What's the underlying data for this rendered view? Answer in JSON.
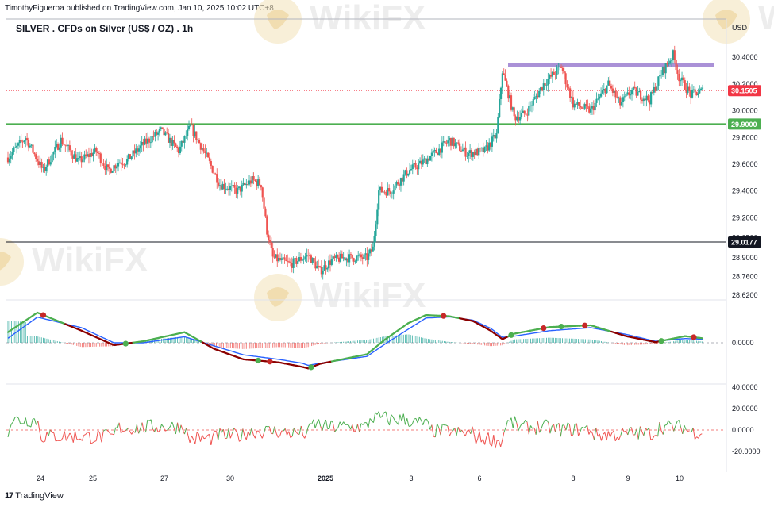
{
  "header": {
    "publisher": "TimothyFigueroa published on TradingView.com, Jan 10, 2025 10:02 UTC+8",
    "title": "SILVER . CFDs on Silver (US$ / OZ) . 1h",
    "currency": "USD"
  },
  "footer": {
    "brand": "TradingView",
    "logo_icon": "tradingview-logo-icon"
  },
  "watermark": {
    "text": "WikiFX",
    "icon": "wikifx-logo-icon"
  },
  "colors": {
    "up": "#26a69a",
    "down": "#ef5350",
    "support": "#4caf50",
    "resistance": "#9575cd",
    "price_badge": "#f23645",
    "support_badge": "#4caf50",
    "mark_line": "#131722",
    "macd_fast": "#4caf50",
    "macd_slow": "#2962ff",
    "macd_fast_down": "#8b0000",
    "hist_up": "#26a69a",
    "hist_down": "#ef5350",
    "osc_up": "#4caf50",
    "osc_down": "#ef5350"
  },
  "chart_data": [
    {
      "type": "candlestick",
      "title": "SILVER . CFDs on Silver (US$ / OZ) . 1h",
      "x_ticks": [
        "24",
        "25",
        "27",
        "30",
        "2025",
        "3",
        "6",
        "8",
        "9",
        "10"
      ],
      "y_ticks": [
        "30.4000",
        "30.2000",
        "30.0000",
        "29.8000",
        "29.6000",
        "29.4000",
        "29.2000",
        "29.0500",
        "28.9000",
        "28.7600",
        "28.6200"
      ],
      "ylim": [
        28.62,
        30.52
      ],
      "path": [
        [
          0,
          29.65
        ],
        [
          6,
          29.8
        ],
        [
          12,
          29.55
        ],
        [
          18,
          29.78
        ],
        [
          24,
          29.62
        ],
        [
          30,
          29.7
        ],
        [
          34,
          29.55
        ],
        [
          38,
          29.62
        ],
        [
          40,
          29.62
        ],
        [
          46,
          29.75
        ],
        [
          52,
          29.85
        ],
        [
          58,
          29.7
        ],
        [
          62,
          29.88
        ],
        [
          66,
          29.72
        ],
        [
          72,
          29.45
        ],
        [
          78,
          29.4
        ],
        [
          83,
          29.48
        ],
        [
          86,
          29.45
        ],
        [
          88,
          29.1
        ],
        [
          90,
          28.9
        ],
        [
          96,
          28.85
        ],
        [
          102,
          28.92
        ],
        [
          106,
          28.8
        ],
        [
          110,
          28.88
        ],
        [
          114,
          28.9
        ],
        [
          122,
          28.9
        ],
        [
          124,
          28.97
        ],
        [
          126,
          29.4
        ],
        [
          130,
          29.4
        ],
        [
          136,
          29.55
        ],
        [
          140,
          29.6
        ],
        [
          146,
          29.7
        ],
        [
          150,
          29.78
        ],
        [
          156,
          29.68
        ],
        [
          162,
          29.7
        ],
        [
          166,
          29.82
        ],
        [
          168,
          30.3
        ],
        [
          172,
          29.95
        ],
        [
          176,
          29.98
        ],
        [
          182,
          30.2
        ],
        [
          188,
          30.33
        ],
        [
          192,
          30.05
        ],
        [
          198,
          30.0
        ],
        [
          204,
          30.2
        ],
        [
          208,
          30.05
        ],
        [
          212,
          30.15
        ],
        [
          218,
          30.08
        ],
        [
          222,
          30.28
        ],
        [
          226,
          30.42
        ],
        [
          228,
          30.25
        ],
        [
          232,
          30.12
        ],
        [
          236,
          30.15
        ]
      ],
      "candle_step": 2,
      "horizontal_levels": [
        {
          "name": "resistance",
          "value": 30.34,
          "style": "band"
        },
        {
          "name": "support",
          "value": 29.9,
          "label": "29.9000",
          "style": "line"
        },
        {
          "name": "marked",
          "value": 29.0177,
          "label": "29.0177",
          "style": "line"
        },
        {
          "name": "last_price",
          "value": 30.1505,
          "label": "30.1505",
          "style": "dotted"
        }
      ]
    },
    {
      "type": "line",
      "indicator": "macd",
      "y_ticks": [
        "0.0000"
      ],
      "series": [
        {
          "values": [
            [
              0,
              0.35
            ],
            [
              10,
              1.0
            ],
            [
              25,
              0.4
            ],
            [
              36,
              -0.08
            ],
            [
              46,
              0.05
            ],
            [
              60,
              0.35
            ],
            [
              70,
              -0.2
            ],
            [
              80,
              -0.55
            ],
            [
              92,
              -0.65
            ],
            [
              100,
              -0.8
            ],
            [
              102,
              -0.85
            ],
            [
              106,
              -0.7
            ],
            [
              122,
              -0.38
            ],
            [
              128,
              0.1
            ],
            [
              136,
              0.65
            ],
            [
              142,
              0.92
            ],
            [
              150,
              0.88
            ],
            [
              158,
              0.72
            ],
            [
              164,
              0.4
            ],
            [
              168,
              0.12
            ],
            [
              172,
              0.3
            ],
            [
              184,
              0.52
            ],
            [
              198,
              0.58
            ],
            [
              210,
              0.22
            ],
            [
              220,
              0.02
            ],
            [
              230,
              0.22
            ],
            [
              236,
              0.15
            ]
          ]
        },
        {
          "values": [
            [
              0,
              0.15
            ],
            [
              10,
              0.85
            ],
            [
              25,
              0.5
            ],
            [
              36,
              0.0
            ],
            [
              46,
              0.0
            ],
            [
              60,
              0.2
            ],
            [
              70,
              -0.1
            ],
            [
              80,
              -0.4
            ],
            [
              92,
              -0.55
            ],
            [
              100,
              -0.68
            ],
            [
              102,
              -0.75
            ],
            [
              106,
              -0.68
            ],
            [
              122,
              -0.45
            ],
            [
              128,
              -0.05
            ],
            [
              136,
              0.45
            ],
            [
              142,
              0.82
            ],
            [
              150,
              0.86
            ],
            [
              158,
              0.75
            ],
            [
              164,
              0.48
            ],
            [
              168,
              0.18
            ],
            [
              172,
              0.22
            ],
            [
              184,
              0.4
            ],
            [
              198,
              0.5
            ],
            [
              210,
              0.28
            ],
            [
              220,
              0.05
            ],
            [
              230,
              0.14
            ],
            [
              236,
              0.12
            ]
          ]
        }
      ],
      "crossovers": [
        {
          "x": 12,
          "dir": "down"
        },
        {
          "x": 40,
          "dir": "up"
        },
        {
          "x": 85,
          "dir": "up"
        },
        {
          "x": 89,
          "dir": "down"
        },
        {
          "x": 103,
          "dir": "up"
        },
        {
          "x": 148,
          "dir": "down"
        },
        {
          "x": 171,
          "dir": "up"
        },
        {
          "x": 182,
          "dir": "down"
        },
        {
          "x": 188,
          "dir": "up"
        },
        {
          "x": 196,
          "dir": "down"
        },
        {
          "x": 222,
          "dir": "up"
        },
        {
          "x": 233,
          "dir": "down"
        }
      ]
    },
    {
      "type": "line",
      "indicator": "oscillator",
      "y_ticks": [
        "40.0000",
        "20.0000",
        "0.0000",
        "-20.0000"
      ],
      "ylim": [
        -40,
        40
      ]
    }
  ]
}
